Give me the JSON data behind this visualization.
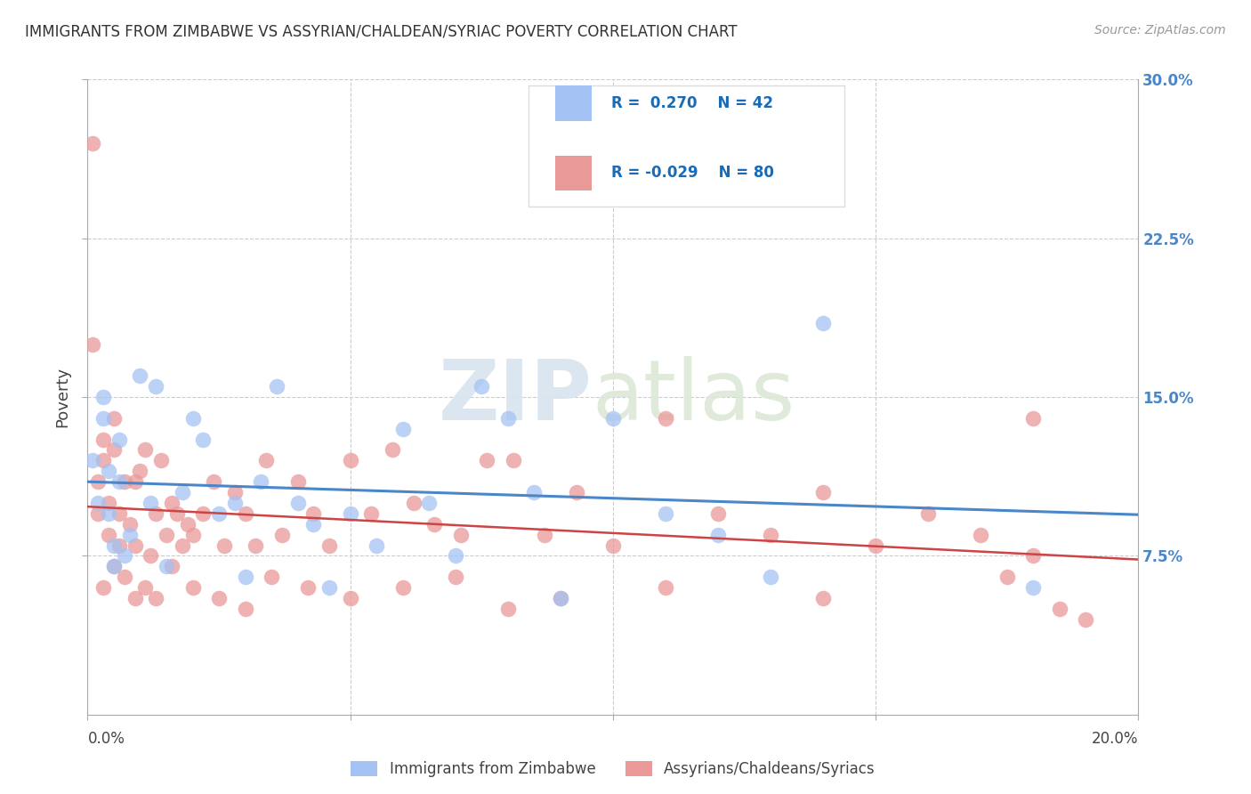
{
  "title": "IMMIGRANTS FROM ZIMBABWE VS ASSYRIAN/CHALDEAN/SYRIAC POVERTY CORRELATION CHART",
  "source": "Source: ZipAtlas.com",
  "ylabel": "Poverty",
  "legend_blue_label": "Immigrants from Zimbabwe",
  "legend_pink_label": "Assyrians/Chaldeans/Syriacs",
  "blue_color": "#a4c2f4",
  "pink_color": "#ea9999",
  "blue_line_color": "#4a86c8",
  "pink_line_color": "#cc4444",
  "blue_x": [
    0.001,
    0.002,
    0.003,
    0.003,
    0.004,
    0.004,
    0.005,
    0.005,
    0.006,
    0.006,
    0.007,
    0.008,
    0.01,
    0.012,
    0.013,
    0.015,
    0.018,
    0.02,
    0.022,
    0.025,
    0.028,
    0.03,
    0.033,
    0.036,
    0.04,
    0.043,
    0.046,
    0.05,
    0.055,
    0.06,
    0.065,
    0.07,
    0.075,
    0.08,
    0.085,
    0.09,
    0.1,
    0.11,
    0.12,
    0.13,
    0.14,
    0.18
  ],
  "blue_y": [
    0.12,
    0.1,
    0.15,
    0.14,
    0.115,
    0.095,
    0.08,
    0.07,
    0.11,
    0.13,
    0.075,
    0.085,
    0.16,
    0.1,
    0.155,
    0.07,
    0.105,
    0.14,
    0.13,
    0.095,
    0.1,
    0.065,
    0.11,
    0.155,
    0.1,
    0.09,
    0.06,
    0.095,
    0.08,
    0.135,
    0.1,
    0.075,
    0.155,
    0.14,
    0.105,
    0.055,
    0.14,
    0.095,
    0.085,
    0.065,
    0.185,
    0.06
  ],
  "pink_x": [
    0.001,
    0.001,
    0.002,
    0.002,
    0.003,
    0.003,
    0.004,
    0.004,
    0.005,
    0.005,
    0.006,
    0.006,
    0.007,
    0.008,
    0.009,
    0.009,
    0.01,
    0.011,
    0.012,
    0.013,
    0.014,
    0.015,
    0.016,
    0.017,
    0.018,
    0.019,
    0.02,
    0.022,
    0.024,
    0.026,
    0.028,
    0.03,
    0.032,
    0.034,
    0.037,
    0.04,
    0.043,
    0.046,
    0.05,
    0.054,
    0.058,
    0.062,
    0.066,
    0.071,
    0.076,
    0.081,
    0.087,
    0.093,
    0.1,
    0.11,
    0.12,
    0.13,
    0.14,
    0.15,
    0.16,
    0.17,
    0.175,
    0.18,
    0.185,
    0.19,
    0.003,
    0.005,
    0.007,
    0.009,
    0.011,
    0.013,
    0.016,
    0.02,
    0.025,
    0.03,
    0.035,
    0.042,
    0.05,
    0.06,
    0.07,
    0.08,
    0.09,
    0.11,
    0.14,
    0.18
  ],
  "pink_y": [
    0.27,
    0.175,
    0.11,
    0.095,
    0.13,
    0.12,
    0.1,
    0.085,
    0.14,
    0.125,
    0.095,
    0.08,
    0.11,
    0.09,
    0.11,
    0.08,
    0.115,
    0.125,
    0.075,
    0.095,
    0.12,
    0.085,
    0.1,
    0.095,
    0.08,
    0.09,
    0.085,
    0.095,
    0.11,
    0.08,
    0.105,
    0.095,
    0.08,
    0.12,
    0.085,
    0.11,
    0.095,
    0.08,
    0.12,
    0.095,
    0.125,
    0.1,
    0.09,
    0.085,
    0.12,
    0.12,
    0.085,
    0.105,
    0.08,
    0.14,
    0.095,
    0.085,
    0.105,
    0.08,
    0.095,
    0.085,
    0.065,
    0.075,
    0.05,
    0.045,
    0.06,
    0.07,
    0.065,
    0.055,
    0.06,
    0.055,
    0.07,
    0.06,
    0.055,
    0.05,
    0.065,
    0.06,
    0.055,
    0.06,
    0.065,
    0.05,
    0.055,
    0.06,
    0.055,
    0.14
  ]
}
